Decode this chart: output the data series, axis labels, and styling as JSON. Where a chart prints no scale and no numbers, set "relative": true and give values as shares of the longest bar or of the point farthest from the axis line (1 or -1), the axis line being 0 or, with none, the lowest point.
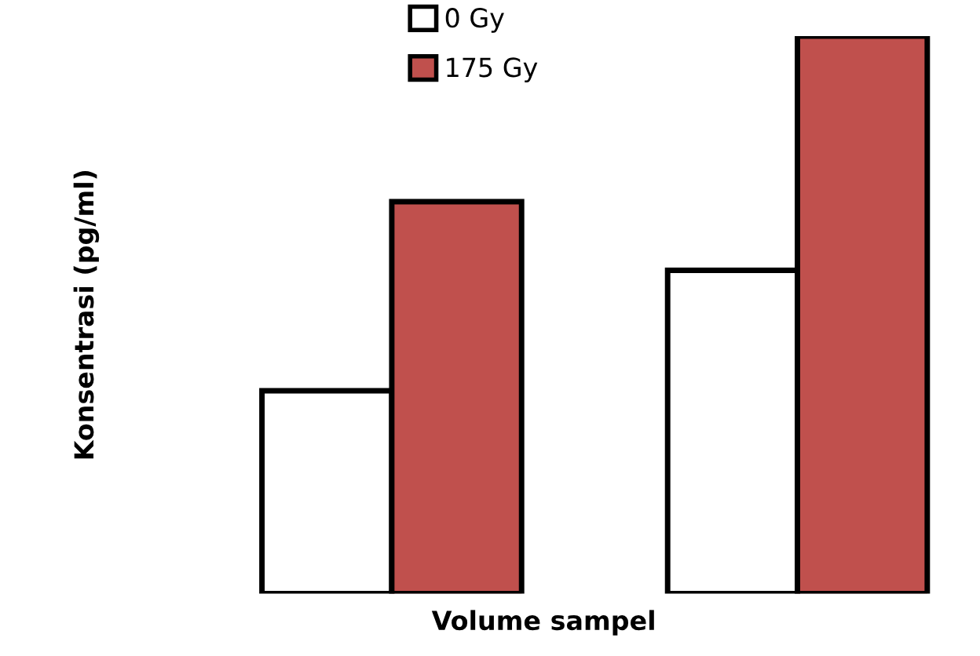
{
  "chart_data": {
    "type": "bar",
    "xlabel": "Volume sampel",
    "ylabel": "Konsentrasi (pg/ml)",
    "categories": [
      null,
      null
    ],
    "relative": true,
    "legend": "top",
    "series": [
      {
        "name": "0 Gy",
        "color": "#ffffff",
        "values": [
          0.364,
          0.58
        ]
      },
      {
        "name": "175 Gy",
        "color": "#c0504d",
        "values": [
          0.703,
          1
        ]
      }
    ]
  }
}
